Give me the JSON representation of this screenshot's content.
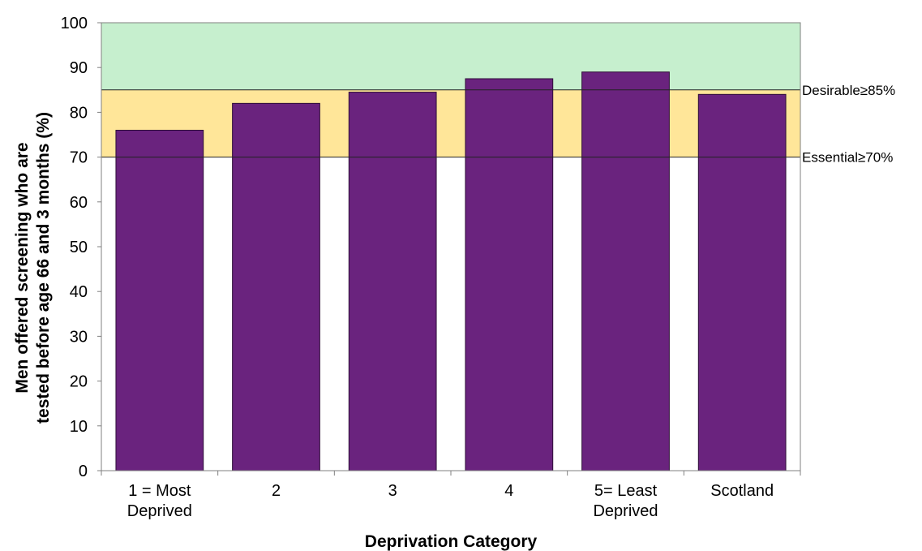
{
  "chart_data": {
    "type": "bar",
    "categories": [
      [
        "1 = Most",
        "Deprived"
      ],
      [
        "2"
      ],
      [
        "3"
      ],
      [
        "4"
      ],
      [
        "5= Least",
        "Deprived"
      ],
      [
        "Scotland"
      ]
    ],
    "values": [
      76,
      82,
      84.5,
      87.5,
      89,
      84
    ],
    "xlabel": "Deprivation Category",
    "ylabel_lines": [
      "Men offered screening who are",
      "tested before age 66 and 3 months (%)"
    ],
    "ylim": [
      0,
      100
    ],
    "yticks": [
      0,
      10,
      20,
      30,
      40,
      50,
      60,
      70,
      80,
      90,
      100
    ],
    "grid": false,
    "bands": [
      {
        "from": 85,
        "to": 100,
        "color": "#c6efce"
      },
      {
        "from": 70,
        "to": 85,
        "color": "#ffe699"
      }
    ],
    "thresholds": [
      {
        "value": 85,
        "label": "Desirable≥85%"
      },
      {
        "value": 70,
        "label": "Essential≥70%"
      }
    ],
    "colors": {
      "bar": "#6a237e",
      "bar_stroke": "#2e0e38"
    }
  }
}
